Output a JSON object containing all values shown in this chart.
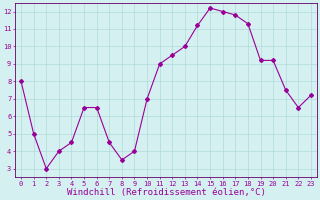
{
  "x": [
    0,
    1,
    2,
    3,
    4,
    5,
    6,
    7,
    8,
    9,
    10,
    11,
    12,
    13,
    14,
    15,
    16,
    17,
    18,
    19,
    20,
    21,
    22,
    23
  ],
  "y": [
    8,
    5,
    3,
    4,
    4.5,
    6.5,
    6.5,
    4.5,
    3.5,
    4,
    7,
    9,
    9.5,
    10,
    11.2,
    12.2,
    12,
    11.8,
    11.3,
    9.2,
    9.2,
    7.5,
    6.5,
    7.2
  ],
  "line_color": "#990099",
  "marker": "D",
  "marker_size": 2,
  "bg_color": "#d4f0f0",
  "grid_color": "#b0dada",
  "xlabel": "Windchill (Refroidissement éolien,°C)",
  "xlim": [
    -0.5,
    23.5
  ],
  "ylim": [
    2.5,
    12.5
  ],
  "yticks": [
    3,
    4,
    5,
    6,
    7,
    8,
    9,
    10,
    11,
    12
  ],
  "xticks": [
    0,
    1,
    2,
    3,
    4,
    5,
    6,
    7,
    8,
    9,
    10,
    11,
    12,
    13,
    14,
    15,
    16,
    17,
    18,
    19,
    20,
    21,
    22,
    23
  ],
  "tick_fontsize": 5,
  "xlabel_fontsize": 6.5,
  "spine_color": "#660066",
  "linewidth": 0.8
}
